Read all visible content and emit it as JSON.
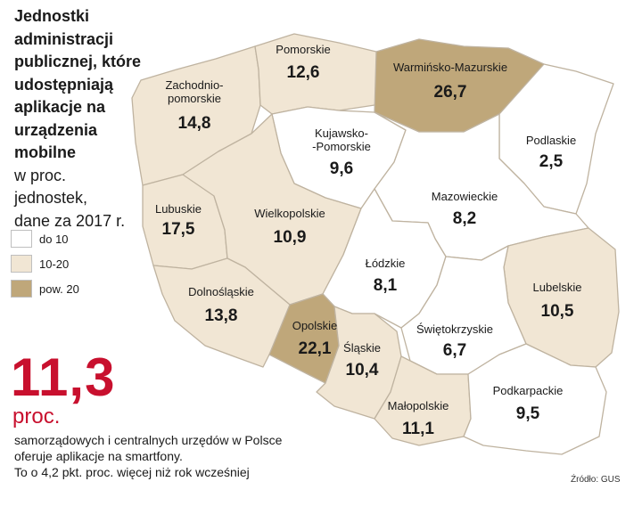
{
  "title": {
    "bold_lines": [
      "Jednostki administracji",
      "publicznej, które",
      "udostępniają",
      "aplikacje na",
      "urządzenia",
      "mobilne"
    ],
    "light_lines": [
      "w proc.",
      "jednostek,",
      "dane za 2017 r."
    ]
  },
  "legend": [
    {
      "label": "do 10",
      "color": "#ffffff"
    },
    {
      "label": "10-20",
      "color": "#f1e6d4"
    },
    {
      "label": "pow. 20",
      "color": "#bfa77a"
    }
  ],
  "highlight": {
    "value": "11,3",
    "unit": "proc.",
    "color": "#c8102e",
    "lines": [
      "samorządowych i centralnych urzędów w Polsce",
      "oferuje aplikacje na smartfony.",
      "To o 4,2 pkt. proc. więcej niż rok wcześniej"
    ]
  },
  "source": "Źródło: GUS",
  "regions": [
    {
      "name_lines": [
        "Zachodnio-",
        "pomorskie"
      ],
      "value": "14,8",
      "class": "10-20"
    },
    {
      "name_lines": [
        "Pomorskie"
      ],
      "value": "12,6",
      "class": "10-20"
    },
    {
      "name_lines": [
        "Warmińsko-Mazurskie"
      ],
      "value": "26,7",
      "class": "pow. 20"
    },
    {
      "name_lines": [
        "Kujawsko-",
        "-Pomorskie"
      ],
      "value": "9,6",
      "class": "do 10"
    },
    {
      "name_lines": [
        "Podlaskie"
      ],
      "value": "2,5",
      "class": "do 10"
    },
    {
      "name_lines": [
        "Lubuskie"
      ],
      "value": "17,5",
      "class": "10-20"
    },
    {
      "name_lines": [
        "Wielkopolskie"
      ],
      "value": "10,9",
      "class": "10-20"
    },
    {
      "name_lines": [
        "Mazowieckie"
      ],
      "value": "8,2",
      "class": "do 10"
    },
    {
      "name_lines": [
        "Łódzkie"
      ],
      "value": "8,1",
      "class": "do 10"
    },
    {
      "name_lines": [
        "Lubelskie"
      ],
      "value": "10,5",
      "class": "10-20"
    },
    {
      "name_lines": [
        "Dolnośląskie"
      ],
      "value": "13,8",
      "class": "10-20"
    },
    {
      "name_lines": [
        "Opolskie"
      ],
      "value": "22,1",
      "class": "pow. 20"
    },
    {
      "name_lines": [
        "Śląskie"
      ],
      "value": "10,4",
      "class": "10-20"
    },
    {
      "name_lines": [
        "Świętokrzyskie"
      ],
      "value": "6,7",
      "class": "do 10"
    },
    {
      "name_lines": [
        "Małopolskie"
      ],
      "value": "11,1",
      "class": "10-20"
    },
    {
      "name_lines": [
        "Podkarpackie"
      ],
      "value": "9,5",
      "class": "do 10"
    }
  ]
}
